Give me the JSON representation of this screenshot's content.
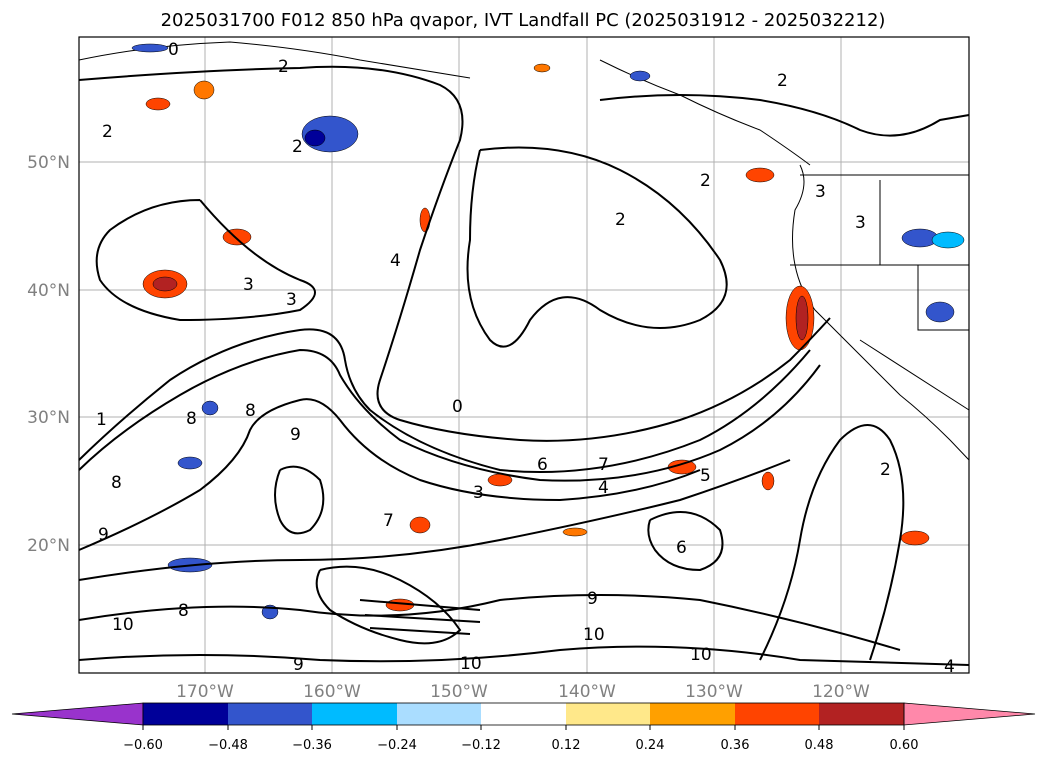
{
  "title": "2025031700 F012 850 hPa qvapor, IVT Landfall PC (2025031912 - 2025032212)",
  "map": {
    "lat_labels": [
      "50°N",
      "40°N",
      "30°N",
      "20°N"
    ],
    "lon_labels": [
      "170°W",
      "160°W",
      "150°W",
      "140°W",
      "130°W",
      "120°W"
    ]
  },
  "contour_labels": [
    "0",
    "2",
    "2",
    "2",
    "2",
    "2",
    "3",
    "3",
    "4",
    "3",
    "9",
    "8",
    "8",
    "9",
    "1",
    "8",
    "0",
    "6",
    "7",
    "4",
    "5",
    "3",
    "2",
    "9",
    "10",
    "10",
    "10",
    "6",
    "7",
    "10",
    "8",
    "4",
    "3",
    "9",
    "2"
  ],
  "colorbar": {
    "tick_labels": [
      "−0.60",
      "−0.48",
      "−0.36",
      "−0.24",
      "−0.12",
      "0.12",
      "0.24",
      "0.36",
      "0.48",
      "0.60"
    ],
    "colors": [
      "#9933cc",
      "#000099",
      "#3355cc",
      "#00bbff",
      "#aaddff",
      "#ffffff",
      "#ffe88a",
      "#ffa000",
      "#ff4400",
      "#b22222",
      "#ff88aa"
    ]
  },
  "colors": {
    "contour": "#000000",
    "grid": "#b0b0b0",
    "coast": "#000000"
  }
}
